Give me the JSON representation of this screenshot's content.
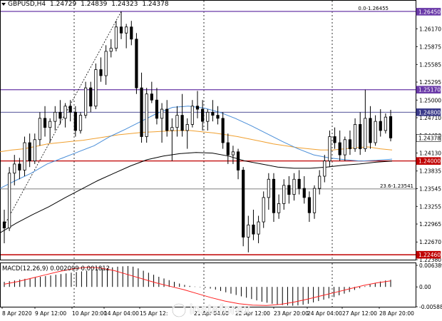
{
  "header": {
    "symbol": "GBPUSD,H4",
    "open": "1.24729",
    "high": "1.24839",
    "low": "1.24323",
    "close": "1.24378"
  },
  "fib_label_top": "0.0-1.26455",
  "fib_label_mid": "23.6-1.23541",
  "price_axis": {
    "ticks": [
      "1.26170",
      "1.25875",
      "1.25585",
      "1.25295",
      "1.25000",
      "1.24710",
      "1.24420",
      "1.24130",
      "1.23835",
      "1.23545",
      "1.23255",
      "1.22965",
      "1.22670",
      "1.22380"
    ]
  },
  "price_boxes": [
    {
      "text": "1.26450",
      "bg": "#6a3aa8",
      "fg": "#ffffff"
    },
    {
      "text": "1.25170",
      "bg": "#6a3aa8",
      "fg": "#ffffff"
    },
    {
      "text": "1.24800",
      "bg": "#3a3a8a",
      "fg": "#ffffff"
    },
    {
      "text": "1.24378",
      "bg": "#ffffff",
      "fg": "#000000"
    },
    {
      "text": "1.24000",
      "bg": "#c00000",
      "fg": "#ffffff"
    },
    {
      "text": "1.22460",
      "bg": "#c00000",
      "fg": "#ffffff"
    }
  ],
  "macd": {
    "label": "MACD(12,26,9) 0.002099 0.001812",
    "axis": [
      "0.006389",
      "0.00",
      "-0.005881"
    ]
  },
  "time_axis": [
    "8 Apr 2020",
    "9 Apr 12:00",
    "10 Apr 20:00",
    "14 Apr 04:00",
    "15 Apr 12:",
    "21 Apr 04:00",
    "22 Apr 12:00",
    "23 Apr 20:00",
    "24 Apr 04:00",
    "27 Apr 12:00",
    "28 Apr 20:00"
  ],
  "watermark": "instaforex",
  "colors": {
    "bull": "#ffffff",
    "bear": "#000000",
    "ma_orange": "#f0a030",
    "ma_blue": "#4a8ed8",
    "ma_black": "#000000",
    "signal_red": "#ff2020",
    "fib_purple": "#6a3aa8",
    "level_red": "#c00000"
  },
  "candles": [
    [
      1.23,
      1.232,
      1.2265,
      1.229
    ],
    [
      1.229,
      1.239,
      1.2285,
      1.238
    ],
    [
      1.238,
      1.241,
      1.236,
      1.2395
    ],
    [
      1.2395,
      1.2405,
      1.237,
      1.2385
    ],
    [
      1.2385,
      1.244,
      1.2375,
      1.243
    ],
    [
      1.243,
      1.2445,
      1.239,
      1.24
    ],
    [
      1.24,
      1.2445,
      1.2395,
      1.2435
    ],
    [
      1.2435,
      1.248,
      1.2425,
      1.247
    ],
    [
      1.247,
      1.249,
      1.244,
      1.2455
    ],
    [
      1.2455,
      1.247,
      1.243,
      1.2465
    ],
    [
      1.2465,
      1.249,
      1.245,
      1.248
    ],
    [
      1.248,
      1.25,
      1.246,
      1.247
    ],
    [
      1.247,
      1.2495,
      1.2455,
      1.249
    ],
    [
      1.249,
      1.25,
      1.2465,
      1.248
    ],
    [
      1.248,
      1.249,
      1.244,
      1.245
    ],
    [
      1.245,
      1.248,
      1.2445,
      1.2475
    ],
    [
      1.2475,
      1.253,
      1.247,
      1.252
    ],
    [
      1.252,
      1.253,
      1.248,
      1.249
    ],
    [
      1.249,
      1.256,
      1.2485,
      1.255
    ],
    [
      1.255,
      1.257,
      1.253,
      1.254
    ],
    [
      1.254,
      1.259,
      1.2525,
      1.258
    ],
    [
      1.258,
      1.26,
      1.257,
      1.2585
    ],
    [
      1.2585,
      1.263,
      1.258,
      1.262
    ],
    [
      1.262,
      1.2645,
      1.26,
      1.261
    ],
    [
      1.261,
      1.2625,
      1.2585,
      1.262
    ],
    [
      1.262,
      1.263,
      1.259,
      1.26
    ],
    [
      1.26,
      1.261,
      1.251,
      1.252
    ],
    [
      1.252,
      1.2545,
      1.243,
      1.244
    ],
    [
      1.244,
      1.252,
      1.243,
      1.251
    ],
    [
      1.251,
      1.253,
      1.2495,
      1.25
    ],
    [
      1.25,
      1.252,
      1.246,
      1.247
    ],
    [
      1.247,
      1.2495,
      1.243,
      1.2485
    ],
    [
      1.2485,
      1.25,
      1.244,
      1.245
    ],
    [
      1.245,
      1.247,
      1.24,
      1.2455
    ],
    [
      1.2455,
      1.249,
      1.244,
      1.2475
    ],
    [
      1.2475,
      1.251,
      1.244,
      1.245
    ],
    [
      1.245,
      1.247,
      1.242,
      1.246
    ],
    [
      1.246,
      1.25,
      1.2455,
      1.249
    ],
    [
      1.249,
      1.2515,
      1.247,
      1.2485
    ],
    [
      1.2485,
      1.25,
      1.245,
      1.2465
    ],
    [
      1.2465,
      1.2485,
      1.245,
      1.248
    ],
    [
      1.248,
      1.25,
      1.2465,
      1.2475
    ],
    [
      1.2475,
      1.249,
      1.246,
      1.247
    ],
    [
      1.247,
      1.248,
      1.242,
      1.243
    ],
    [
      1.243,
      1.2445,
      1.2395,
      1.241
    ],
    [
      1.241,
      1.2425,
      1.2395,
      1.2415
    ],
    [
      1.2415,
      1.242,
      1.237,
      1.2385
    ],
    [
      1.2385,
      1.239,
      1.226,
      1.2275
    ],
    [
      1.2275,
      1.231,
      1.225,
      1.2295
    ],
    [
      1.2295,
      1.232,
      1.227,
      1.228
    ],
    [
      1.228,
      1.231,
      1.2265,
      1.23
    ],
    [
      1.23,
      1.235,
      1.229,
      1.234
    ],
    [
      1.234,
      1.238,
      1.232,
      1.237
    ],
    [
      1.237,
      1.238,
      1.23,
      1.2315
    ],
    [
      1.2315,
      1.2345,
      1.2305,
      1.233
    ],
    [
      1.233,
      1.237,
      1.232,
      1.236
    ],
    [
      1.236,
      1.2375,
      1.233,
      1.2345
    ],
    [
      1.2345,
      1.238,
      1.2335,
      1.237
    ],
    [
      1.237,
      1.2385,
      1.2345,
      1.2355
    ],
    [
      1.2355,
      1.2375,
      1.233,
      1.234
    ],
    [
      1.234,
      1.235,
      1.23,
      1.2315
    ],
    [
      1.2315,
      1.236,
      1.2305,
      1.2355
    ],
    [
      1.2355,
      1.2385,
      1.2345,
      1.2375
    ],
    [
      1.2375,
      1.241,
      1.2365,
      1.24
    ],
    [
      1.24,
      1.245,
      1.239,
      1.244
    ],
    [
      1.244,
      1.2455,
      1.242,
      1.243
    ],
    [
      1.243,
      1.245,
      1.24,
      1.241
    ],
    [
      1.241,
      1.244,
      1.24,
      1.2435
    ],
    [
      1.2435,
      1.245,
      1.241,
      1.242
    ],
    [
      1.242,
      1.247,
      1.2415,
      1.246
    ],
    [
      1.246,
      1.248,
      1.241,
      1.242
    ],
    [
      1.242,
      1.2517,
      1.2415,
      1.247
    ],
    [
      1.247,
      1.249,
      1.242,
      1.243
    ],
    [
      1.243,
      1.2475,
      1.2425,
      1.2465
    ],
    [
      1.2465,
      1.2485,
      1.244,
      1.245
    ],
    [
      1.245,
      1.2478,
      1.2445,
      1.2472
    ],
    [
      1.24729,
      1.24839,
      1.24323,
      1.24378
    ]
  ],
  "ma_orange": [
    1.2415,
    1.2418,
    1.242,
    1.2424,
    1.2428,
    1.243,
    1.2432,
    1.2434,
    1.2437,
    1.244,
    1.2443,
    1.2445,
    1.2447,
    1.2448,
    1.2449,
    1.245,
    1.245,
    1.2448,
    1.2446,
    1.2443,
    1.244,
    1.2436,
    1.2432,
    1.2428,
    1.2425,
    1.2422,
    1.242,
    1.2418,
    1.2418,
    1.242,
    1.2422,
    1.2423,
    1.242,
    1.2418
  ],
  "ma_blue": [
    1.2355,
    1.2368,
    1.238,
    1.2395,
    1.2405,
    1.2415,
    1.2425,
    1.244,
    1.2452,
    1.2465,
    1.2478,
    1.2488,
    1.249,
    1.2487,
    1.248,
    1.247,
    1.2458,
    1.2445,
    1.2432,
    1.242,
    1.241,
    1.2405,
    1.2402,
    1.24,
    1.2401,
    1.2403
  ],
  "ma_black": [
    1.2282,
    1.2298,
    1.2312,
    1.2325,
    1.234,
    1.2354,
    1.2368,
    1.238,
    1.2392,
    1.2402,
    1.2408,
    1.2412,
    1.2414,
    1.2413,
    1.2408,
    1.24,
    1.2395,
    1.239,
    1.2388,
    1.2388,
    1.239,
    1.2393,
    1.2395,
    1.2398,
    1.24
  ],
  "macd_hist": [
    0.0015,
    0.0017,
    0.0019,
    0.0022,
    0.0024,
    0.0026,
    0.0028,
    0.003,
    0.0032,
    0.0034,
    0.0036,
    0.0038,
    0.004,
    0.0042,
    0.0044,
    0.0046,
    0.0048,
    0.005,
    0.0052,
    0.0054,
    0.0056,
    0.0058,
    0.006,
    0.0061,
    0.0062,
    0.006,
    0.0055,
    0.0048,
    0.0042,
    0.0036,
    0.003,
    0.0025,
    0.002,
    0.0015,
    0.001,
    0.0006,
    0.0003,
    0.0001,
    -0.0001,
    -0.0003,
    -0.0005,
    -0.0008,
    -0.0012,
    -0.0016,
    -0.002,
    -0.0024,
    -0.0028,
    -0.0032,
    -0.0036,
    -0.004,
    -0.0044,
    -0.0047,
    -0.005,
    -0.0052,
    -0.0054,
    -0.0055,
    -0.0056,
    -0.0055,
    -0.0053,
    -0.005,
    -0.0046,
    -0.0042,
    -0.0038,
    -0.0034,
    -0.003,
    -0.0025,
    -0.002,
    -0.0015,
    -0.0009,
    -0.0004,
    0.0002,
    0.0007,
    0.0012,
    0.0016,
    0.0019,
    0.0021
  ],
  "macd_signal": [
    0.0008,
    0.0016,
    0.0026,
    0.0036,
    0.0046,
    0.0054,
    0.0058,
    0.0056,
    0.0048,
    0.0036,
    0.0024,
    0.0012,
    0.0002,
    -0.0008,
    -0.002,
    -0.0032,
    -0.0042,
    -0.005,
    -0.0054,
    -0.0055,
    -0.0052,
    -0.0045,
    -0.0036,
    -0.0026,
    -0.0016,
    -0.0006,
    0.0004,
    0.0012,
    0.0018
  ]
}
